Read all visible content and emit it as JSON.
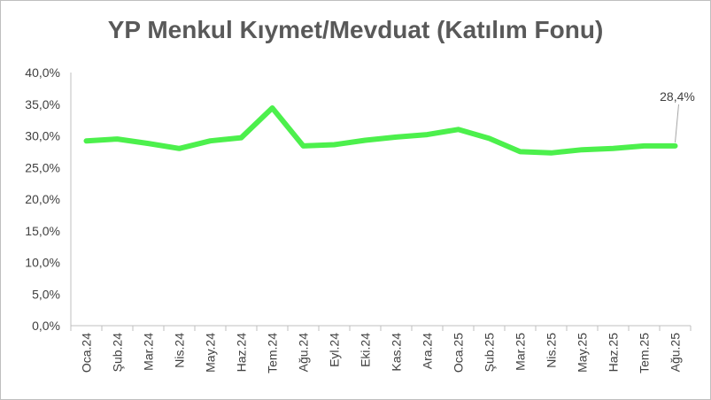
{
  "chart_data": {
    "type": "line",
    "title": "YP Menkul Kıymet/Mevduat (Katılım Fonu)",
    "xlabel": "",
    "ylabel": "",
    "categories": [
      "Oca.24",
      "Şub.24",
      "Mar.24",
      "Nis.24",
      "May.24",
      "Haz.24",
      "Tem.24",
      "Ağu.24",
      "Eyl.24",
      "Eki.24",
      "Kas.24",
      "Ara.24",
      "Oca.25",
      "Şub.25",
      "Mar.25",
      "Nis.25",
      "May.25",
      "Haz.25",
      "Tem.25",
      "Ağu.25"
    ],
    "y_ticks": [
      "0,0%",
      "5,0%",
      "10,0%",
      "15,0%",
      "20,0%",
      "25,0%",
      "30,0%",
      "35,0%",
      "40,0%"
    ],
    "ylim": [
      0,
      40
    ],
    "grid": false,
    "legend": "none",
    "series": [
      {
        "values": [
          29.2,
          29.5,
          28.8,
          28.0,
          29.2,
          29.7,
          34.4,
          28.4,
          28.6,
          29.3,
          29.8,
          30.2,
          31.0,
          29.6,
          27.5,
          27.3,
          27.8,
          28.0,
          28.4,
          28.4
        ],
        "color": "#4cf04c"
      }
    ],
    "annotation": {
      "text": "28,4%",
      "index": 19
    }
  }
}
